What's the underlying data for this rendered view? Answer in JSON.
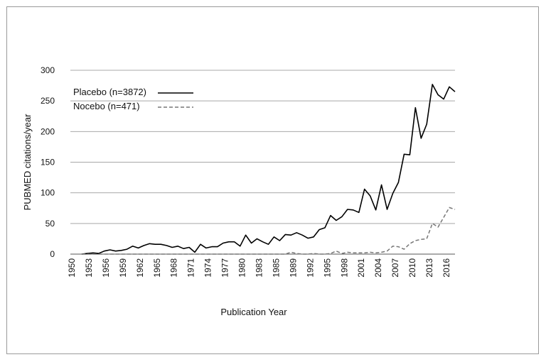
{
  "chart_data": {
    "type": "line",
    "title": "",
    "xlabel": "Publication Year",
    "ylabel": "PUBMED citations/year",
    "xlim": [
      1950,
      2018
    ],
    "ylim": [
      0,
      300
    ],
    "y_ticks": [
      0,
      50,
      100,
      150,
      200,
      250,
      300
    ],
    "x_tick_labels": [
      "1950",
      "1953",
      "1956",
      "1959",
      "1962",
      "1965",
      "1968",
      "1971",
      "1974",
      "1977",
      "1980",
      "1983",
      "1985",
      "1989",
      "1992",
      "1995",
      "1998",
      "2001",
      "2004",
      "2007",
      "2010",
      "2013",
      "2016"
    ],
    "grid": "horizontal",
    "legend_position": "top-left",
    "series": [
      {
        "name": "Placebo (n=3872)",
        "style": "solid",
        "color": "#000000",
        "x": [
          1952,
          1953,
          1954,
          1955,
          1956,
          1957,
          1958,
          1959,
          1960,
          1961,
          1962,
          1963,
          1964,
          1965,
          1966,
          1967,
          1968,
          1969,
          1970,
          1971,
          1972,
          1973,
          1974,
          1975,
          1976,
          1977,
          1978,
          1979,
          1980,
          1981,
          1982,
          1983,
          1984,
          1985,
          1986,
          1987,
          1988,
          1989,
          1990,
          1991,
          1992,
          1993,
          1994,
          1995,
          1996,
          1997,
          1998,
          1999,
          2000,
          2001,
          2002,
          2003,
          2004,
          2005,
          2006,
          2007,
          2008,
          2009,
          2010,
          2011,
          2012,
          2013,
          2014,
          2015,
          2016,
          2017,
          2018
        ],
        "values": [
          0,
          1,
          2,
          1,
          5,
          7,
          5,
          6,
          8,
          13,
          10,
          14,
          17,
          16,
          16,
          14,
          11,
          13,
          9,
          11,
          3,
          16,
          10,
          12,
          12,
          18,
          20,
          20,
          13,
          31,
          18,
          25,
          20,
          16,
          28,
          22,
          32,
          31,
          35,
          31,
          26,
          28,
          40,
          43,
          63,
          55,
          61,
          73,
          72,
          68,
          106,
          95,
          72,
          113,
          73,
          99,
          117,
          163,
          162,
          239,
          189,
          212,
          277,
          260,
          253,
          273,
          265
        ]
      },
      {
        "name": "Nocebo (n=471)",
        "style": "dashed",
        "color": "#777777",
        "x": [
          1952,
          1955,
          1958,
          1961,
          1964,
          1967,
          1970,
          1973,
          1976,
          1979,
          1982,
          1985,
          1988,
          1989,
          1990,
          1991,
          1992,
          1993,
          1994,
          1995,
          1996,
          1997,
          1998,
          1999,
          2000,
          2001,
          2002,
          2003,
          2004,
          2005,
          2006,
          2007,
          2008,
          2009,
          2010,
          2011,
          2012,
          2013,
          2014,
          2015,
          2016,
          2017,
          2018
        ],
        "values": [
          0,
          0,
          0,
          0,
          0,
          0,
          0,
          0,
          0,
          0,
          0,
          0,
          0,
          3,
          1,
          0,
          0,
          1,
          0,
          0,
          1,
          5,
          1,
          3,
          2,
          2,
          2,
          3,
          2,
          3,
          5,
          13,
          12,
          8,
          17,
          22,
          24,
          25,
          50,
          44,
          60,
          76,
          73
        ]
      }
    ]
  }
}
